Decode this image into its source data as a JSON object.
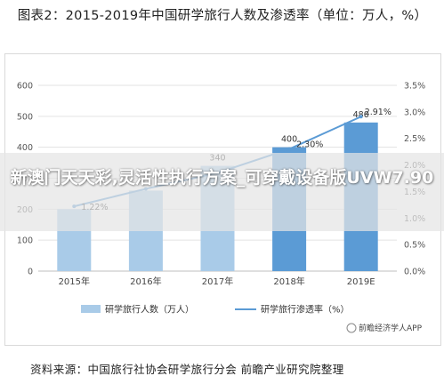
{
  "page": {
    "title": "图表2：2015-2019年中国研学旅行人数及渗透率（单位：万人，%）",
    "source": "资料来源：中国旅行社协会研学旅行分会 前瞻产业研究院整理",
    "watermark": "前瞻经济学人APP",
    "overlay_text": "新澳门天天彩,灵活性执行方案_可穿戴设备版UVW7.90"
  },
  "chart_data": {
    "type": "bar",
    "categories": [
      "2015年",
      "2016年",
      "2017年",
      "2018年",
      "2019E"
    ],
    "series": [
      {
        "name": "研学旅行人数（万人）",
        "type": "bar",
        "axis": "left",
        "values": [
          200,
          260,
          340,
          400,
          480
        ],
        "labels": [
          "",
          "",
          "340",
          "400",
          "480"
        ],
        "color": "#a9cbe8",
        "highlight_color": "#5b9bd5"
      },
      {
        "name": "研学旅行渗透率（%）",
        "type": "line",
        "axis": "right",
        "values": [
          1.22,
          1.55,
          1.85,
          2.3,
          2.91
        ],
        "labels": [
          "1.22%",
          "",
          "",
          "2.30%",
          "2.91%"
        ],
        "color": "#5b9bd5"
      }
    ],
    "y_left": {
      "min": 0,
      "max": 600,
      "ticks": [
        "0",
        "100",
        "200",
        "300",
        "400",
        "500",
        "600"
      ]
    },
    "y_right": {
      "min": 0,
      "max": 3.5,
      "ticks": [
        "0.0%",
        "0.5%",
        "1.0%",
        "1.5%",
        "2.0%",
        "2.5%",
        "3.0%",
        "3.5%"
      ]
    },
    "grid": true,
    "legend": "bottom"
  }
}
